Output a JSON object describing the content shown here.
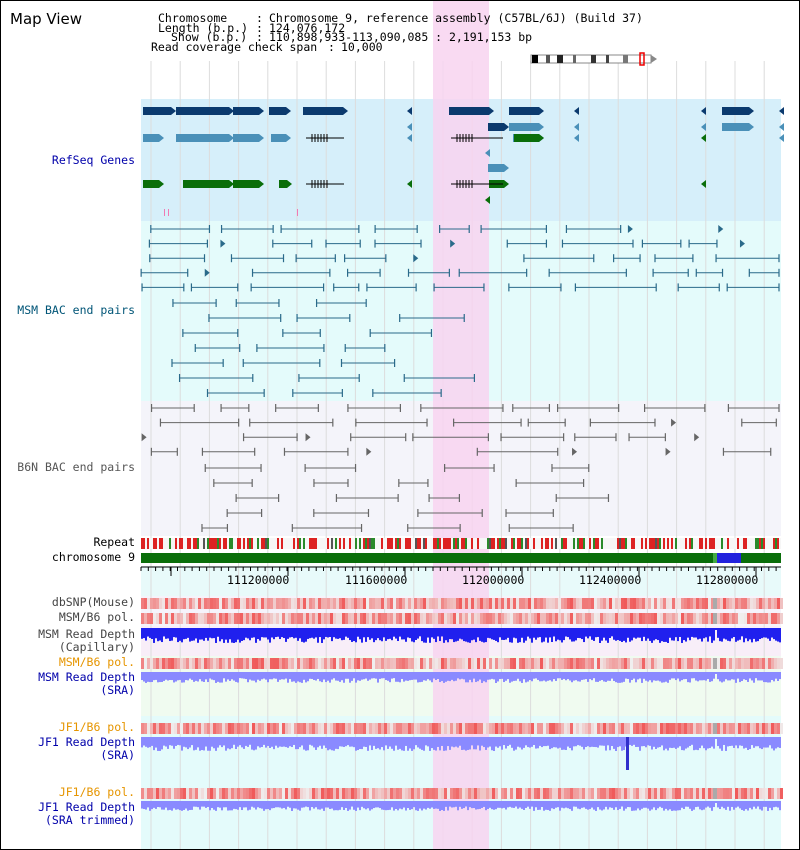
{
  "title": "Map View",
  "header": {
    "chromosome_label": "Chromosome",
    "chromosome_value": "Chromosome 9, reference assembly (C57BL/6J) (Build 37)",
    "length_label": "Length (b.p.)",
    "length_value": "124,076,172",
    "show_label": "Show (b.p.)",
    "show_value": "110,898,933-113,090,085 : 2,191,153 bp",
    "coverage_label": "Read coverage check span",
    "coverage_value": "10,000"
  },
  "tracks": {
    "refseq": "RefSeq Genes",
    "msm_bac": "MSM BAC end pairs",
    "b6n_bac": "B6N BAC end pairs",
    "repeat": "Repeat",
    "chromosome": "chromosome 9",
    "dbsnp": "dbSNP(Mouse)",
    "msm_b6_pol": "MSM/B6 pol.",
    "msm_depth_cap_1": "MSM Read Depth",
    "msm_depth_cap_2": "(Capillary)",
    "msm_b6_pol_2": "MSM/B6 pol.",
    "msm_depth_sra_1": "MSM Read Depth",
    "msm_depth_sra_2": "(SRA)",
    "jf1_b6_pol": "JF1/B6 pol.",
    "jf1_depth_sra_1": "JF1 Read Depth",
    "jf1_depth_sra_2": "(SRA)",
    "jf1_b6_pol_2": "JF1/B6 pol.",
    "jf1_depth_trim_1": "JF1 Read Depth",
    "jf1_depth_trim_2": "(SRA trimmed)"
  },
  "axis": {
    "ticks": [
      "111200000",
      "111600000",
      "112000000",
      "112400000",
      "112800000"
    ]
  },
  "colors": {
    "refseq_bg": "#d6effa",
    "msm_bg": "#e4fbfb",
    "b6n_bg": "#f4f4fa",
    "highlight": "#f8d4f0",
    "gene_dark": "#0b3a6e",
    "gene_mid": "#4a90b8",
    "gene_green": "#0a6e0a",
    "bac_msm": "#2a6a8a",
    "bac_b6n": "#666666",
    "label_blue": "#0000aa",
    "label_msm": "#005577",
    "label_orange": "#e69500",
    "label_black": "#000000",
    "depth_blue": "#2020ee",
    "depth_light": "#8a8aff"
  }
}
